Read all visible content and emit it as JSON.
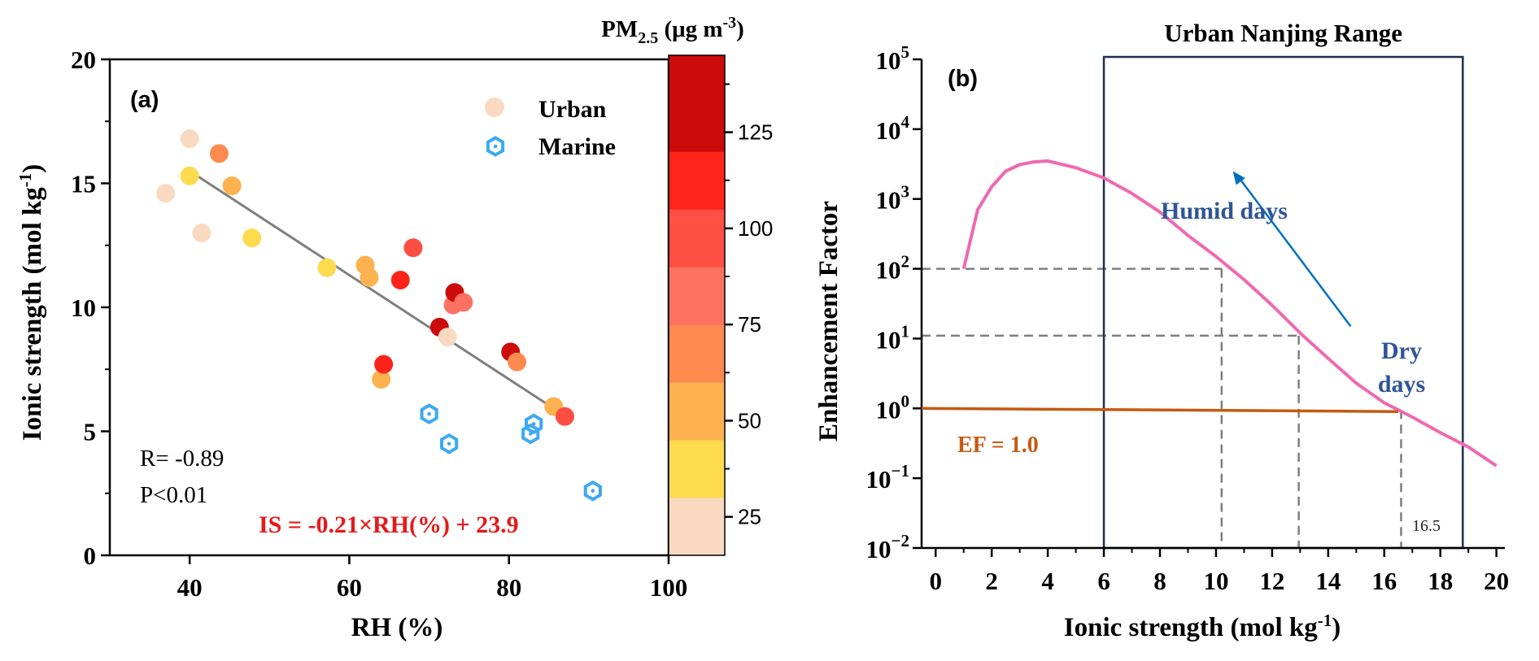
{
  "chart_data": [
    {
      "panel_label": "(a)",
      "type": "scatter",
      "xlabel": "RH (%)",
      "ylabel": "Ionic strength (mol kg-1)",
      "ylabel_parts": {
        "main": "Ionic strength (mol kg",
        "sup": "-1",
        "close": ")"
      },
      "xlim": [
        30,
        100
      ],
      "ylim": [
        0,
        20
      ],
      "xticks": [
        40,
        60,
        80,
        100
      ],
      "yticks": [
        0,
        5,
        10,
        15,
        20
      ],
      "legend": {
        "placement": "top-right",
        "entries": [
          "Urban",
          "Marine"
        ]
      },
      "colorbar": {
        "title": "PM2.5 (μg m-3)",
        "title_parts": {
          "pre": "PM",
          "sub": "2.5",
          "mid": " (μg m",
          "sup": "-3",
          "close": ")"
        },
        "range": [
          15,
          145
        ],
        "ticks": [
          25,
          50,
          75,
          100,
          125
        ],
        "bins": [
          {
            "from": 15,
            "to": 30,
            "color": "#F9DAC0"
          },
          {
            "from": 30,
            "to": 45,
            "color": "#FEDA4F"
          },
          {
            "from": 45,
            "to": 60,
            "color": "#FDB14F"
          },
          {
            "from": 60,
            "to": 75,
            "color": "#FE8A50"
          },
          {
            "from": 75,
            "to": 90,
            "color": "#FF7262"
          },
          {
            "from": 90,
            "to": 105,
            "color": "#FF4E43"
          },
          {
            "from": 105,
            "to": 120,
            "color": "#FF2419"
          },
          {
            "from": 120,
            "to": 145,
            "color": "#CC0B0B"
          }
        ]
      },
      "series": [
        {
          "name": "Urban",
          "marker": "circle",
          "points": [
            {
              "x": 37.0,
              "y": 14.6,
              "pm25": 22
            },
            {
              "x": 40.0,
              "y": 16.8,
              "pm25": 22
            },
            {
              "x": 40.0,
              "y": 15.3,
              "pm25": 37
            },
            {
              "x": 41.5,
              "y": 13.0,
              "pm25": 22
            },
            {
              "x": 43.7,
              "y": 16.2,
              "pm25": 67
            },
            {
              "x": 45.3,
              "y": 14.9,
              "pm25": 52
            },
            {
              "x": 47.8,
              "y": 12.8,
              "pm25": 37
            },
            {
              "x": 57.2,
              "y": 11.6,
              "pm25": 37
            },
            {
              "x": 62.0,
              "y": 11.7,
              "pm25": 52
            },
            {
              "x": 62.5,
              "y": 11.2,
              "pm25": 52
            },
            {
              "x": 64.0,
              "y": 7.1,
              "pm25": 52
            },
            {
              "x": 64.3,
              "y": 7.7,
              "pm25": 112
            },
            {
              "x": 66.4,
              "y": 11.1,
              "pm25": 112
            },
            {
              "x": 68.0,
              "y": 12.4,
              "pm25": 97
            },
            {
              "x": 71.3,
              "y": 9.2,
              "pm25": 130
            },
            {
              "x": 72.3,
              "y": 8.8,
              "pm25": 22
            },
            {
              "x": 73.0,
              "y": 10.1,
              "pm25": 82
            },
            {
              "x": 73.2,
              "y": 10.6,
              "pm25": 130
            },
            {
              "x": 74.3,
              "y": 10.2,
              "pm25": 82
            },
            {
              "x": 80.2,
              "y": 8.2,
              "pm25": 130
            },
            {
              "x": 81.0,
              "y": 7.8,
              "pm25": 67
            },
            {
              "x": 85.6,
              "y": 6.0,
              "pm25": 52
            },
            {
              "x": 87.0,
              "y": 5.6,
              "pm25": 97
            }
          ]
        },
        {
          "name": "Marine",
          "marker": "hexagon",
          "color": "#3DA9F2",
          "points": [
            {
              "x": 70.0,
              "y": 5.7
            },
            {
              "x": 72.5,
              "y": 4.5
            },
            {
              "x": 82.7,
              "y": 4.9
            },
            {
              "x": 83.1,
              "y": 5.3
            },
            {
              "x": 90.5,
              "y": 2.6
            }
          ]
        }
      ],
      "fit_line": {
        "x": [
          40.6,
          87.5
        ],
        "slope": -0.21,
        "intercept": 23.9,
        "color": "#7F7F7F"
      },
      "annotations": {
        "r_text": "R= -0.89",
        "p_text": "P<0.01",
        "equation": "IS = -0.21×RH(%) + 23.9",
        "equation_color": "#E8191A"
      }
    },
    {
      "panel_label": "(b)",
      "type": "line",
      "xlabel": "Ionic strength (mol kg-1)",
      "xlabel_parts": {
        "main": "Ionic strength (mol kg",
        "sup": "-1",
        "close": ")"
      },
      "ylabel": "Enhancement Factor",
      "xlim": [
        -0.5,
        20.3
      ],
      "ylim_exp": [
        -2,
        5
      ],
      "y_scale": "log",
      "xticks": [
        0,
        2,
        4,
        6,
        8,
        10,
        12,
        14,
        16,
        18,
        20
      ],
      "yticks_exp": [
        -2,
        -1,
        0,
        1,
        2,
        3,
        4,
        5
      ],
      "ytick_base": "10",
      "series": [
        {
          "name": "enhancement curve",
          "color": "#EE6AAF",
          "x": [
            1.0,
            1.5,
            2.0,
            2.5,
            3.0,
            3.5,
            4.0,
            5.0,
            6.0,
            7.0,
            8.0,
            9.0,
            10.0,
            11.0,
            12.0,
            13.0,
            14.0,
            15.0,
            16.0,
            16.5,
            17.0,
            18.0,
            19.0,
            20.0
          ],
          "y": [
            100,
            700,
            1500,
            2500,
            3100,
            3400,
            3500,
            2800,
            2000,
            1200,
            650,
            300,
            150,
            70,
            30,
            12,
            5.2,
            2.3,
            1.2,
            0.95,
            0.75,
            0.45,
            0.28,
            0.15
          ]
        },
        {
          "name": "EF = 1.0",
          "color": "#C55A11",
          "x": [
            -0.5,
            16.5
          ],
          "y": [
            1.0,
            0.9
          ]
        }
      ],
      "range_box": {
        "label": "Urban Nanjing Range",
        "x": [
          6,
          18.8
        ]
      },
      "guides": [
        {
          "ef": 100,
          "is": 10.2
        },
        {
          "ef": 11,
          "is": 12.95
        },
        {
          "ef": 0.95,
          "is": 16.6
        }
      ],
      "guide_label": "16.5",
      "ef_label": "EF = 1.0",
      "ef_label_color": "#C55A11",
      "humid_label": "Humid days",
      "dry_label_lines": [
        "Dry",
        "days"
      ],
      "label_color": "#2F5597",
      "arrow": {
        "from": [
          14.8,
          15
        ],
        "to": [
          10.6,
          2500
        ],
        "color": "#0070C0"
      }
    }
  ]
}
